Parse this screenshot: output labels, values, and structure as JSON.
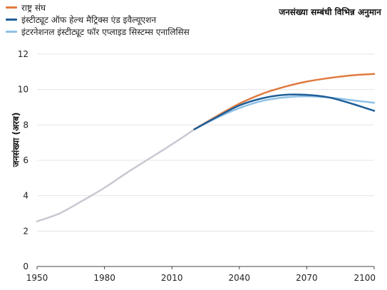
{
  "chart_data": {
    "type": "line",
    "title": "जनसंख्या सम्बंधी विभिन्न अनुमान",
    "xlabel": "",
    "ylabel": "जनसंख्या (अरब)",
    "xlim": [
      1950,
      2100
    ],
    "ylim": [
      0,
      12
    ],
    "xticks": [
      1950,
      1980,
      2010,
      2040,
      2070,
      2100
    ],
    "yticks": [
      0,
      2,
      4,
      6,
      8,
      10,
      12
    ],
    "grid": "horizontal",
    "legend_position": "top-left",
    "historical": {
      "color": "#c8c8d2",
      "x": [
        1950,
        1960,
        1970,
        1980,
        1990,
        2000,
        2010,
        2020
      ],
      "y": [
        2.55,
        3.0,
        3.7,
        4.45,
        5.3,
        6.1,
        6.9,
        7.75
      ]
    },
    "series": [
      {
        "name": "राष्ट्र संघ",
        "color": "#e07a3f",
        "x": [
          2020,
          2030,
          2040,
          2050,
          2060,
          2070,
          2080,
          2090,
          2100
        ],
        "y": [
          7.75,
          8.5,
          9.2,
          9.75,
          10.15,
          10.45,
          10.65,
          10.8,
          10.88
        ]
      },
      {
        "name": "इंस्टीट्यूट ऑफ हेल्थ मैट्रिक्स एंड इवैल्यूएशन",
        "color": "#1f5f99",
        "x": [
          2020,
          2030,
          2040,
          2050,
          2060,
          2070,
          2080,
          2090,
          2100
        ],
        "y": [
          7.75,
          8.45,
          9.1,
          9.5,
          9.7,
          9.7,
          9.55,
          9.2,
          8.8
        ]
      },
      {
        "name": "इंटरनेशनल इंस्टीट्यूट फॉर एप्लाइड सिस्टम्स एनालिसिस",
        "color": "#8ec1e6",
        "x": [
          2020,
          2030,
          2040,
          2050,
          2060,
          2070,
          2080,
          2090,
          2100
        ],
        "y": [
          7.75,
          8.4,
          8.95,
          9.35,
          9.55,
          9.62,
          9.55,
          9.4,
          9.25
        ]
      }
    ]
  }
}
